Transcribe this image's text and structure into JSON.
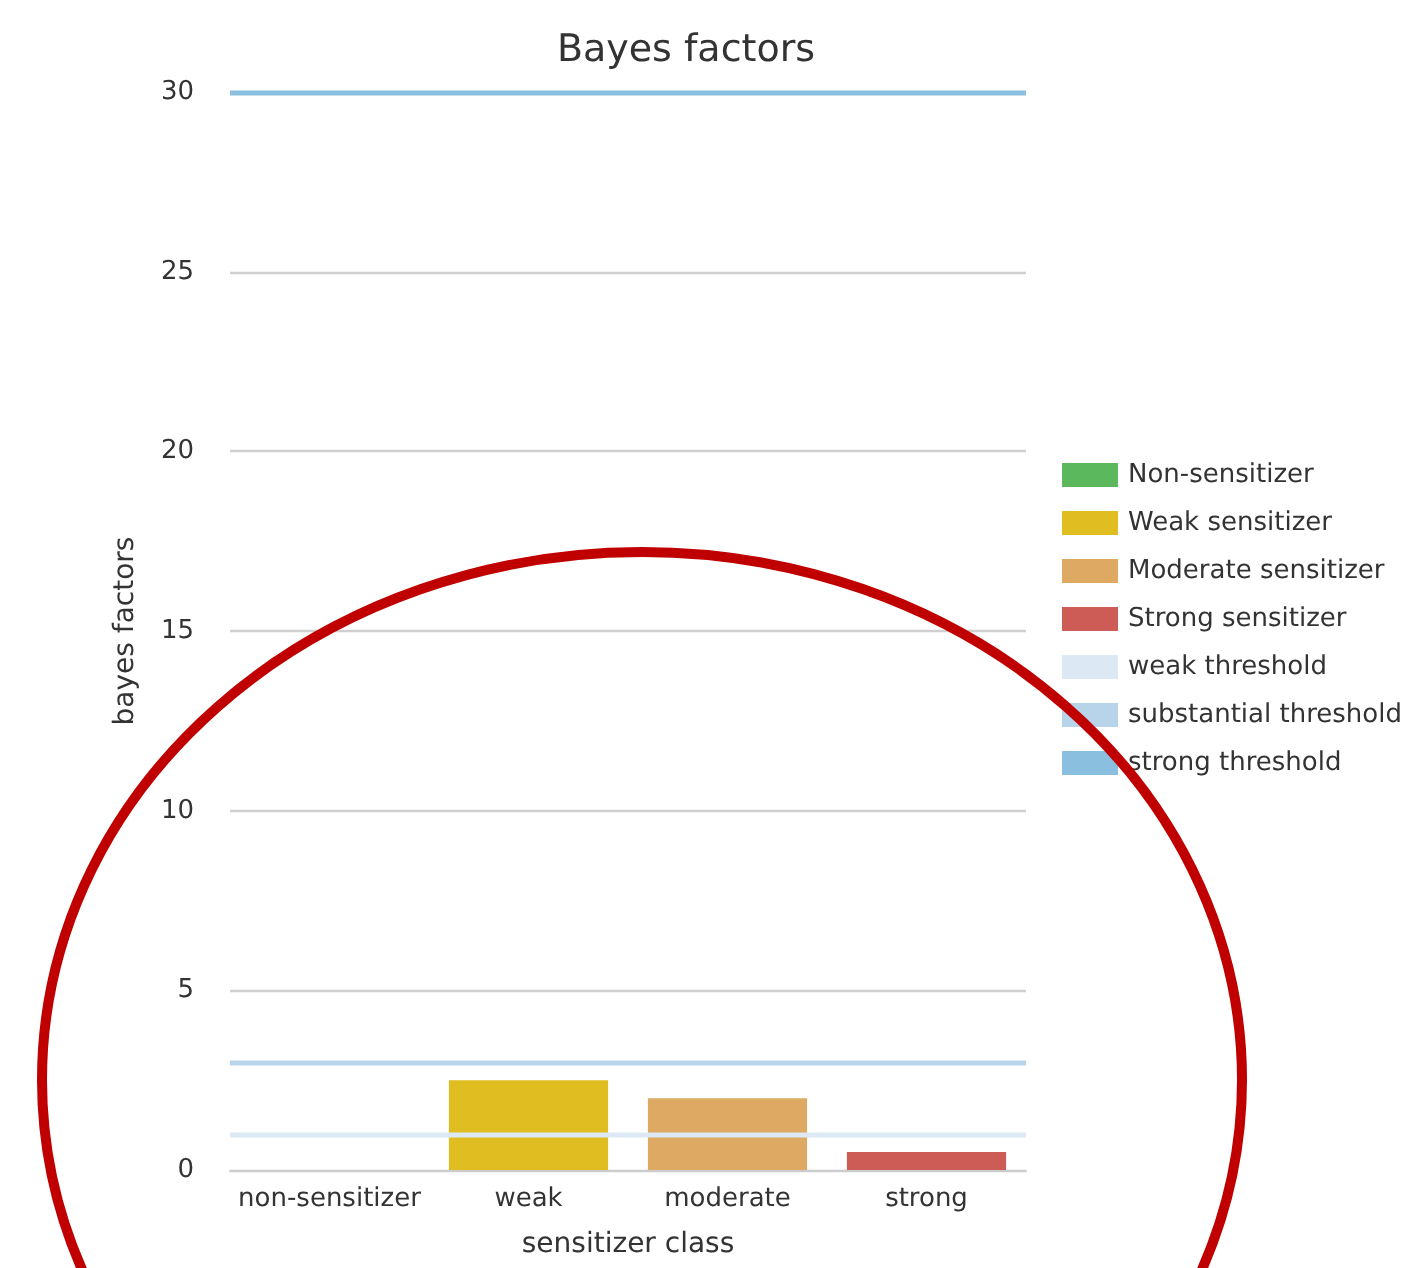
{
  "chart_data": {
    "type": "bar",
    "title": "Bayes factors",
    "xlabel": "sensitizer class",
    "ylabel": "bayes factors",
    "categories": [
      "non-sensitizer",
      "weak",
      "moderate",
      "strong"
    ],
    "series": [
      {
        "name": "Non-sensitizer",
        "color": "#5cb85c",
        "values": [
          0,
          null,
          null,
          null
        ]
      },
      {
        "name": "Weak sensitizer",
        "color": "#e0be22",
        "values": [
          null,
          2.5,
          null,
          null
        ]
      },
      {
        "name": "Moderate sensitizer",
        "color": "#dda963",
        "values": [
          null,
          null,
          2,
          null
        ]
      },
      {
        "name": "Strong sensitizer",
        "color": "#cd5c56",
        "values": [
          null,
          null,
          null,
          0.5
        ]
      }
    ],
    "ylim": [
      0,
      30
    ],
    "yticks": [
      0,
      5,
      10,
      15,
      20,
      25,
      30
    ],
    "grid": "y",
    "legend": "right",
    "ref_lines": [
      {
        "axis": "y",
        "value": 1,
        "label": "weak threshold",
        "color": "#dce9f5"
      },
      {
        "axis": "y",
        "value": 3,
        "label": "substantial threshold",
        "color": "#b8d4ea"
      },
      {
        "axis": "y",
        "value": 30,
        "label": "strong threshold",
        "color": "#8bbfdf"
      }
    ]
  }
}
